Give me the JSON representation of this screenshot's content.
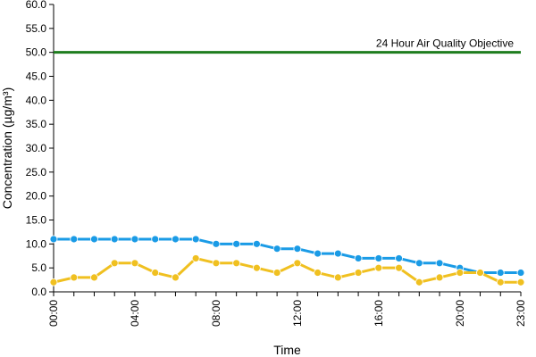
{
  "chart_data": {
    "type": "line",
    "xlabel": "Time",
    "ylabel": "Concentration (µg/m³)",
    "ylim": [
      0,
      60
    ],
    "y_ticks": [
      "0.0",
      "5.0",
      "10.0",
      "15.0",
      "20.0",
      "25.0",
      "30.0",
      "35.0",
      "40.0",
      "45.0",
      "50.0",
      "55.0",
      "60.0"
    ],
    "x_ticks": [
      "00:00",
      "04:00",
      "08:00",
      "12:00",
      "16:00",
      "20:00",
      "23:00"
    ],
    "x_tick_hours": [
      0,
      4,
      8,
      12,
      16,
      20,
      23
    ],
    "x": [
      "00:00",
      "01:00",
      "02:00",
      "03:00",
      "04:00",
      "05:00",
      "06:00",
      "07:00",
      "08:00",
      "09:00",
      "10:00",
      "11:00",
      "12:00",
      "13:00",
      "14:00",
      "15:00",
      "16:00",
      "17:00",
      "18:00",
      "19:00",
      "20:00",
      "21:00",
      "22:00",
      "23:00"
    ],
    "series": [
      {
        "color": "#1a9be6",
        "values": [
          11,
          11,
          11,
          11,
          11,
          11,
          11,
          11,
          10,
          10,
          10,
          9,
          9,
          8,
          8,
          7,
          7,
          7,
          6,
          6,
          5,
          4,
          4,
          4
        ]
      },
      {
        "color": "#f0c020",
        "values": [
          2,
          3,
          3,
          6,
          6,
          4,
          3,
          7,
          6,
          6,
          5,
          4,
          6,
          4,
          3,
          4,
          5,
          5,
          2,
          3,
          4,
          4,
          2,
          2
        ]
      }
    ],
    "reference_line": {
      "value": 50,
      "label": "24 Hour Air Quality Objective",
      "color": "#1e7d1e"
    },
    "grid": false,
    "legend": "none"
  }
}
